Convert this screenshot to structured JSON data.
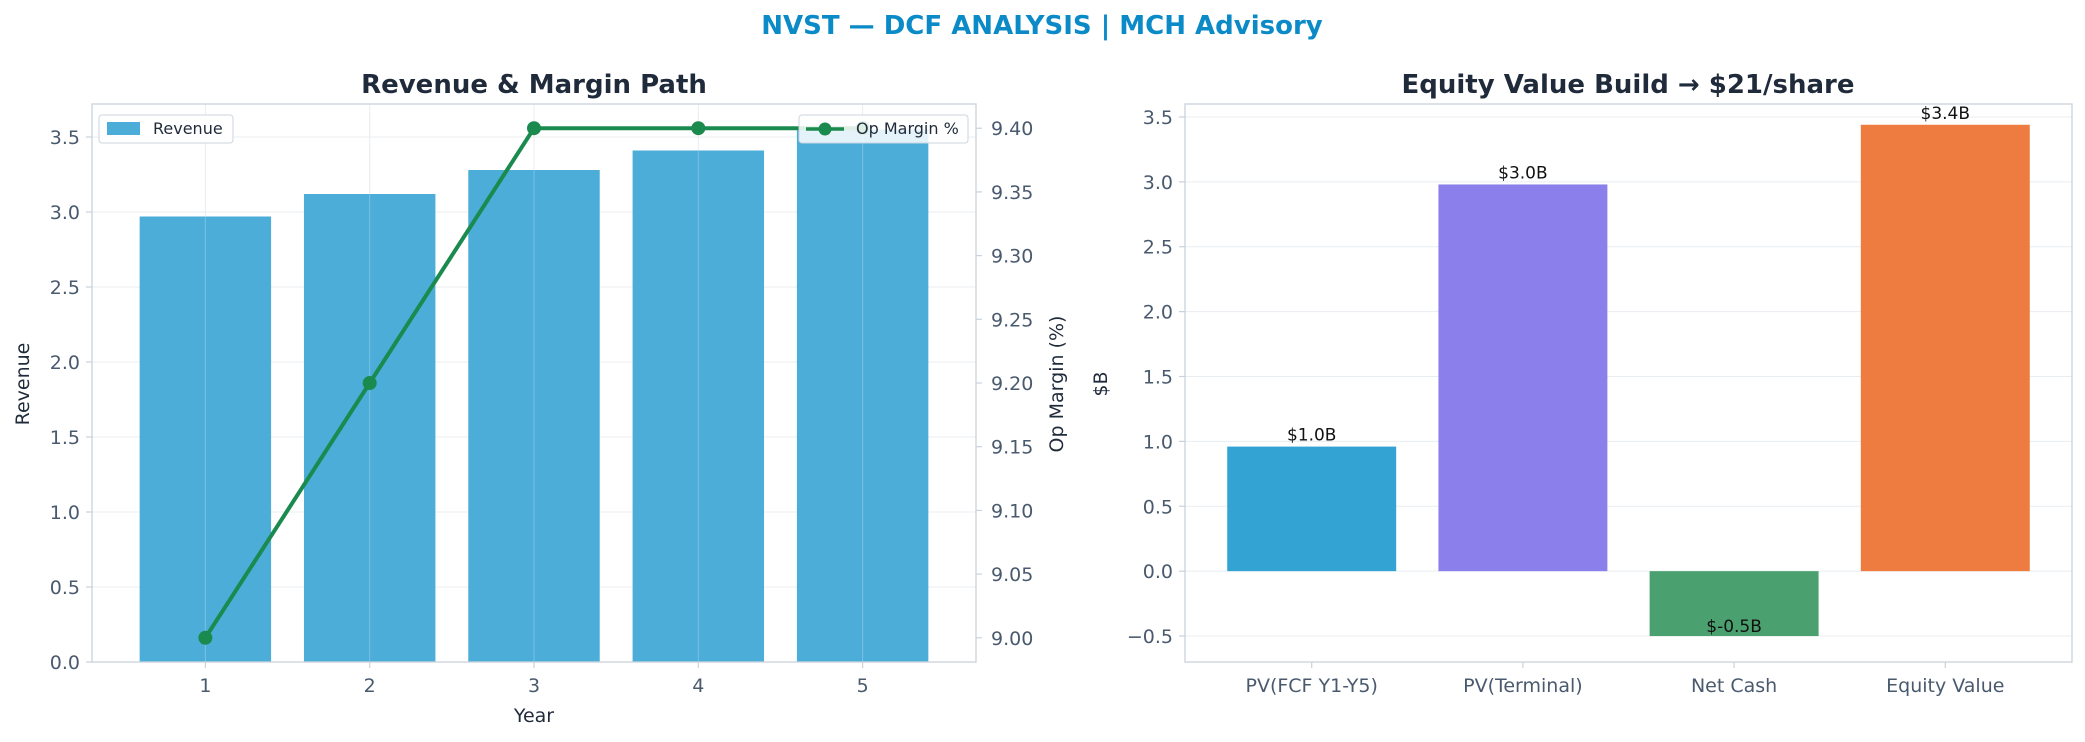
{
  "figure": {
    "suptitle": "NVST — DCF ANALYSIS | MCH Advisory"
  },
  "colors": {
    "title_blue": "#0A8AC7",
    "dark_text": "#1F2A3A",
    "tick_text": "#4A5A6E",
    "revenue_bar": "#4CADD9",
    "margin_line": "#1B8A4E",
    "pv_fcf": "#33A3D4",
    "pv_terminal": "#8A7FEB",
    "net_cash": "#4AA06E",
    "equity_value": "#EE7B3F",
    "grid": "#E8EDF2",
    "spine": "#C9D2DC"
  },
  "chart_data": [
    {
      "type": "bar",
      "title": "Revenue & Margin Path",
      "xlabel": "Year",
      "ylabel": "Revenue",
      "y2label": "Op Margin (%)",
      "categories": [
        "1",
        "2",
        "3",
        "4",
        "5"
      ],
      "ylim": [
        0,
        3.72
      ],
      "yticks": [
        "0.0",
        "0.5",
        "1.0",
        "1.5",
        "2.0",
        "2.5",
        "3.0",
        "3.5"
      ],
      "y2lim": [
        8.981,
        9.419
      ],
      "y2ticks": [
        "9.00",
        "9.05",
        "9.10",
        "9.15",
        "9.20",
        "9.25",
        "9.30",
        "9.35",
        "9.40"
      ],
      "grid": true,
      "series": [
        {
          "name": "Revenue",
          "kind": "bar",
          "axis": "left",
          "values": [
            2.97,
            3.12,
            3.28,
            3.41,
            3.55
          ]
        },
        {
          "name": "Op Margin %",
          "kind": "line",
          "axis": "right",
          "values": [
            9.0,
            9.2,
            9.4,
            9.4,
            9.4
          ]
        }
      ],
      "legends": [
        {
          "position": "top-left",
          "entries": [
            "Revenue"
          ]
        },
        {
          "position": "top-right",
          "entries": [
            "Op Margin %"
          ]
        }
      ]
    },
    {
      "type": "bar",
      "title": "Equity Value Build → $21/share",
      "ylabel": "$B",
      "xlabel": "",
      "categories": [
        "PV(FCF Y1-Y5)",
        "PV(Terminal)",
        "Net Cash",
        "Equity Value"
      ],
      "values": [
        0.96,
        2.98,
        -0.5,
        3.44
      ],
      "data_labels": [
        "$1.0B",
        "$3.0B",
        "$-0.5B",
        "$3.4B"
      ],
      "ylim": [
        -0.7,
        3.6
      ],
      "yticks": [
        "−0.5",
        "0.0",
        "0.5",
        "1.0",
        "1.5",
        "2.0",
        "2.5",
        "3.0",
        "3.5"
      ],
      "grid": true
    }
  ]
}
